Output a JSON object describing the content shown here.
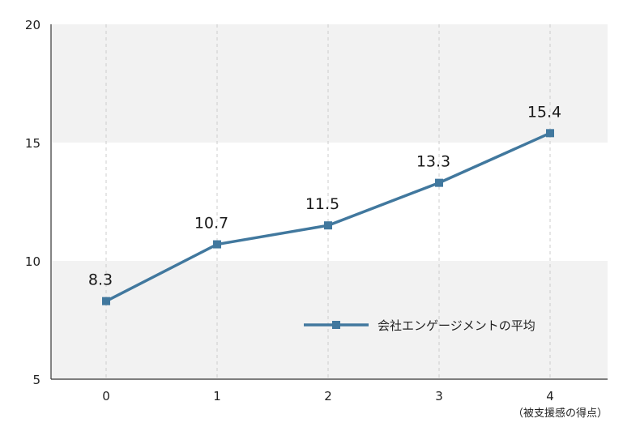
{
  "chart_data": {
    "type": "line",
    "x": [
      0,
      1,
      2,
      3,
      4
    ],
    "series": [
      {
        "name": "会社エンゲージメントの平均",
        "values": [
          8.3,
          10.7,
          11.5,
          13.3,
          15.4
        ]
      }
    ],
    "data_labels": [
      "8.3",
      "10.7",
      "11.5",
      "13.3",
      "15.4"
    ],
    "x_tick_labels": [
      "0",
      "1",
      "2",
      "3",
      "4"
    ],
    "y_tick_labels": [
      "5",
      "10",
      "15",
      "20"
    ],
    "ylim": [
      5,
      20
    ],
    "xlabel": "（被支援感の得点）",
    "ylabel": "",
    "title": "",
    "grid": true,
    "legend_position": "bottom-right",
    "colors": {
      "line": "#41789e",
      "band": "#f2f2f2",
      "grid": "#cccccc",
      "axis": "#333333"
    }
  }
}
